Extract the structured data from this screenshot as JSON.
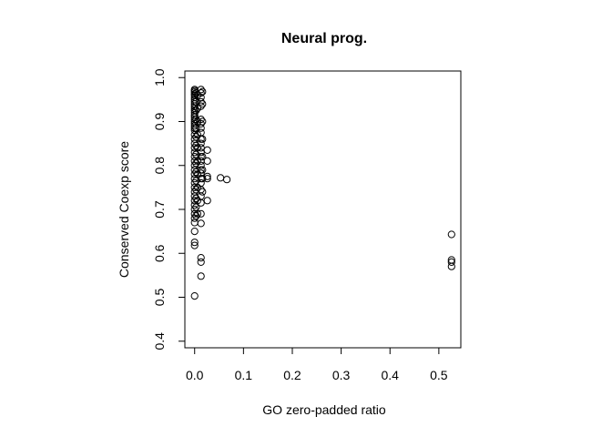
{
  "chart_data": {
    "type": "scatter",
    "title": "Neural prog.",
    "xlabel": "GO zero-padded ratio",
    "ylabel": "Conserved Coexp score",
    "xlim": [
      -0.02,
      0.545
    ],
    "ylim": [
      0.385,
      1.015
    ],
    "x_ticks": [
      0.0,
      0.1,
      0.2,
      0.3,
      0.4,
      0.5
    ],
    "x_tick_labels": [
      "0.0",
      "0.1",
      "0.2",
      "0.3",
      "0.4",
      "0.5"
    ],
    "y_ticks": [
      0.4,
      0.5,
      0.6,
      0.7,
      0.8,
      0.9,
      1.0
    ],
    "y_tick_labels": [
      "0.4",
      "0.5",
      "0.6",
      "0.7",
      "0.8",
      "0.9",
      "1.0"
    ],
    "grid": false,
    "marker": "open-circle",
    "points": [
      [
        0,
        0.973
      ],
      [
        0,
        0.97
      ],
      [
        0,
        0.967
      ],
      [
        0,
        0.963
      ],
      [
        0,
        0.96
      ],
      [
        0,
        0.955
      ],
      [
        0,
        0.95
      ],
      [
        0,
        0.945
      ],
      [
        0,
        0.94
      ],
      [
        0,
        0.935
      ],
      [
        0,
        0.93
      ],
      [
        0,
        0.925
      ],
      [
        0,
        0.92
      ],
      [
        0,
        0.915
      ],
      [
        0,
        0.91
      ],
      [
        0,
        0.905
      ],
      [
        0,
        0.9
      ],
      [
        0,
        0.895
      ],
      [
        0,
        0.89
      ],
      [
        0,
        0.885
      ],
      [
        0,
        0.88
      ],
      [
        0,
        0.87
      ],
      [
        0,
        0.86
      ],
      [
        0,
        0.85
      ],
      [
        0,
        0.84
      ],
      [
        0,
        0.83
      ],
      [
        0,
        0.82
      ],
      [
        0,
        0.81
      ],
      [
        0,
        0.8
      ],
      [
        0,
        0.79
      ],
      [
        0,
        0.78
      ],
      [
        0,
        0.77
      ],
      [
        0,
        0.76
      ],
      [
        0,
        0.75
      ],
      [
        0,
        0.74
      ],
      [
        0,
        0.73
      ],
      [
        0,
        0.72
      ],
      [
        0,
        0.71
      ],
      [
        0,
        0.7
      ],
      [
        0,
        0.69
      ],
      [
        0,
        0.68
      ],
      [
        0,
        0.67
      ],
      [
        0,
        0.65
      ],
      [
        0,
        0.625
      ],
      [
        0,
        0.618
      ],
      [
        0,
        0.503
      ],
      [
        0.003,
        0.965
      ],
      [
        0.003,
        0.945
      ],
      [
        0.003,
        0.925
      ],
      [
        0.003,
        0.905
      ],
      [
        0.003,
        0.885
      ],
      [
        0.003,
        0.865
      ],
      [
        0.003,
        0.845
      ],
      [
        0.003,
        0.825
      ],
      [
        0.003,
        0.805
      ],
      [
        0.003,
        0.785
      ],
      [
        0.003,
        0.765
      ],
      [
        0.003,
        0.745
      ],
      [
        0.003,
        0.725
      ],
      [
        0.003,
        0.705
      ],
      [
        0.003,
        0.685
      ],
      [
        0.006,
        0.96
      ],
      [
        0.006,
        0.93
      ],
      [
        0.006,
        0.9
      ],
      [
        0.006,
        0.87
      ],
      [
        0.006,
        0.84
      ],
      [
        0.006,
        0.81
      ],
      [
        0.006,
        0.78
      ],
      [
        0.006,
        0.75
      ],
      [
        0.006,
        0.72
      ],
      [
        0.006,
        0.69
      ],
      [
        0.013,
        0.973
      ],
      [
        0.013,
        0.965
      ],
      [
        0.013,
        0.955
      ],
      [
        0.013,
        0.945
      ],
      [
        0.013,
        0.935
      ],
      [
        0.013,
        0.905
      ],
      [
        0.013,
        0.895
      ],
      [
        0.013,
        0.885
      ],
      [
        0.013,
        0.875
      ],
      [
        0.013,
        0.86
      ],
      [
        0.013,
        0.85
      ],
      [
        0.013,
        0.84
      ],
      [
        0.013,
        0.83
      ],
      [
        0.013,
        0.82
      ],
      [
        0.013,
        0.81
      ],
      [
        0.013,
        0.8
      ],
      [
        0.013,
        0.79
      ],
      [
        0.013,
        0.782
      ],
      [
        0.013,
        0.77
      ],
      [
        0.013,
        0.76
      ],
      [
        0.013,
        0.745
      ],
      [
        0.013,
        0.73
      ],
      [
        0.013,
        0.715
      ],
      [
        0.013,
        0.69
      ],
      [
        0.013,
        0.668
      ],
      [
        0.013,
        0.59
      ],
      [
        0.013,
        0.58
      ],
      [
        0.013,
        0.548
      ],
      [
        0.016,
        0.968
      ],
      [
        0.016,
        0.94
      ],
      [
        0.016,
        0.9
      ],
      [
        0.016,
        0.86
      ],
      [
        0.016,
        0.82
      ],
      [
        0.016,
        0.79
      ],
      [
        0.016,
        0.77
      ],
      [
        0.016,
        0.74
      ],
      [
        0.026,
        0.835
      ],
      [
        0.026,
        0.81
      ],
      [
        0.026,
        0.775
      ],
      [
        0.026,
        0.77
      ],
      [
        0.026,
        0.72
      ],
      [
        0.053,
        0.772
      ],
      [
        0.066,
        0.768
      ],
      [
        0.526,
        0.643
      ],
      [
        0.526,
        0.585
      ],
      [
        0.526,
        0.58
      ],
      [
        0.526,
        0.57
      ]
    ]
  }
}
